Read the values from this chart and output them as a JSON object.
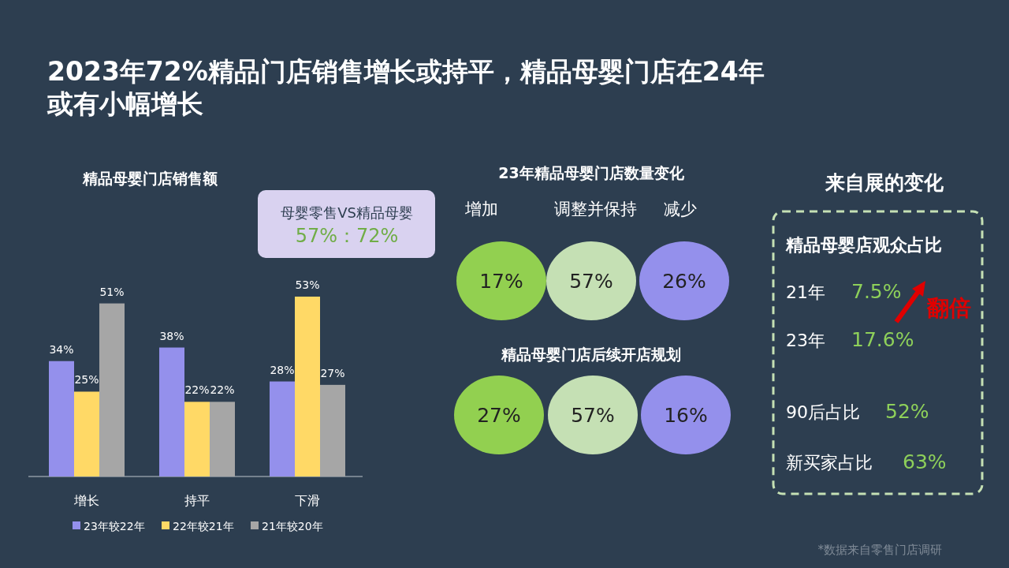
{
  "chart_data": [
    {
      "type": "other",
      "title": "2023年72%精品门店销售增长或持平，精品母婴门店在24年或有小幅增长",
      "annotations": [
        "*数据来自零售门店调研"
      ]
    },
    {
      "type": "bar",
      "title": "精品母婴门店销售额",
      "categories": [
        "增长",
        "持平",
        "下滑"
      ],
      "legend": "bottom",
      "annotations": [
        "母婴零售VS精品母婴",
        "57%：72%"
      ],
      "series": [
        {
          "name": "23年较22年",
          "color": "#9490ec",
          "values": [
            34,
            38,
            28
          ],
          "value_labels": [
            "34%",
            "38%",
            "28%"
          ]
        },
        {
          "name": "22年较21年",
          "color": "#ffd966",
          "values": [
            25,
            22,
            53
          ],
          "value_labels": [
            "25%",
            "22%",
            "53%"
          ]
        },
        {
          "name": "21年较20年",
          "color": "#a6a6a6",
          "values": [
            51,
            22,
            27
          ],
          "value_labels": [
            "51%",
            "22%",
            "27%"
          ]
        }
      ]
    },
    {
      "type": "other",
      "title": "23年精品母婴门店数量变化",
      "categories": [
        "增加",
        "调整并保持",
        "减少"
      ],
      "values": [
        17,
        57,
        26
      ],
      "value_labels": [
        "17%",
        "57%",
        "26%"
      ],
      "colors": [
        "#92d050",
        "#c5e0b4",
        "#9490ec"
      ]
    },
    {
      "type": "other",
      "title": "精品母婴门店后续开店规划",
      "categories": [
        null,
        null,
        null
      ],
      "values": [
        27,
        57,
        16
      ],
      "value_labels": [
        "27%",
        "57%",
        "16%"
      ],
      "colors": [
        "#92d050",
        "#c5e0b4",
        "#9490ec"
      ]
    },
    {
      "type": "other",
      "title": "来自展的变化",
      "annotations": [
        "精品母婴店观众占比",
        "21年",
        "7.5%",
        "23年",
        "17.6%",
        "翻倍",
        "90后占比",
        "52%",
        "新买家占比",
        "63%"
      ]
    }
  ]
}
